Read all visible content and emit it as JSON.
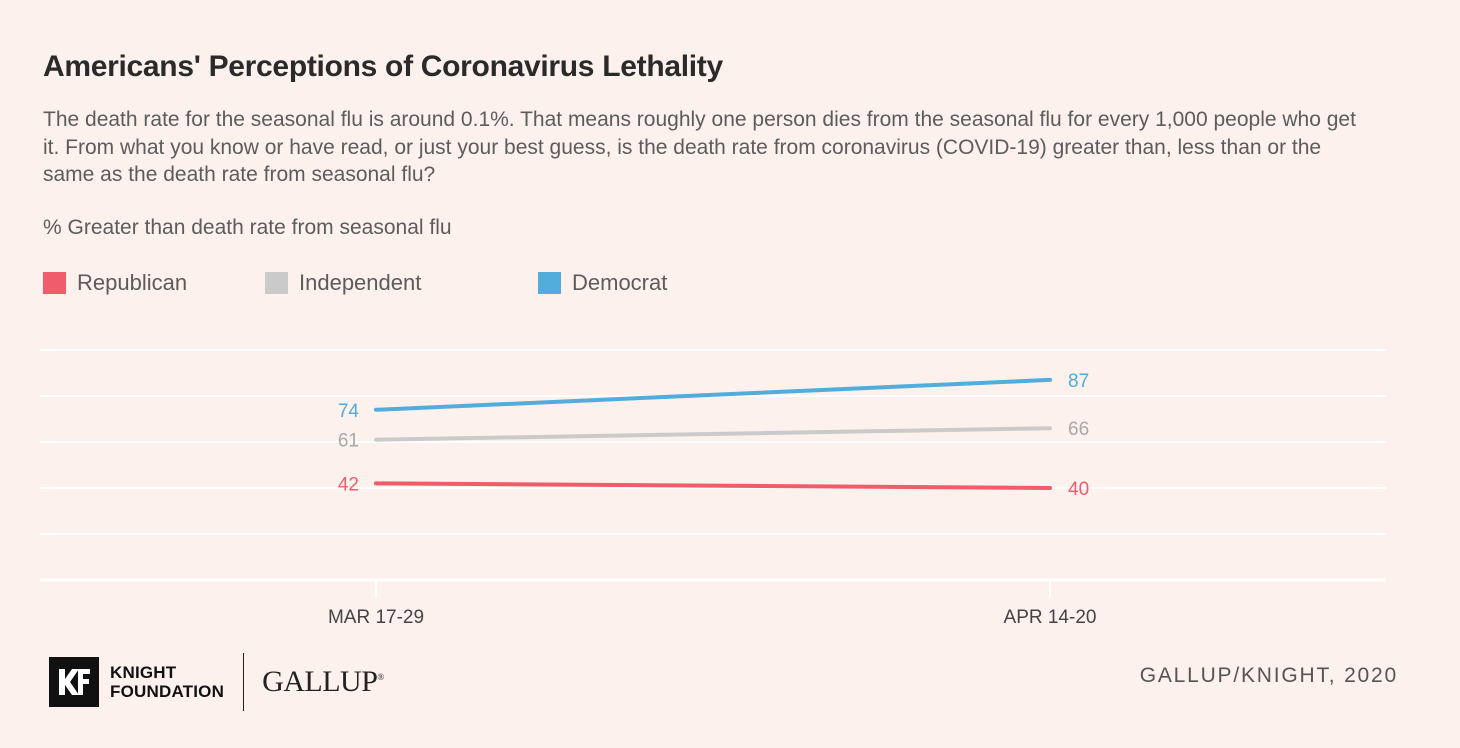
{
  "title": "Americans' Perceptions of Coronavirus Lethality",
  "subtitle": "The death rate for the seasonal flu is around 0.1%. That means roughly one person dies from the seasonal flu for every 1,000 people who get it. From what you know or have read, or just your best guess, is the death rate from coronavirus (COVID-19) greater than, less than or the same as the death rate from seasonal flu?",
  "measure_label": "% Greater than death rate from seasonal flu",
  "footer": {
    "logo_kf_line1": "KNIGHT",
    "logo_kf_line2": "FOUNDATION",
    "logo_gallup": "GALLUP",
    "credit": "GALLUP/KNIGHT, 2020"
  },
  "chart_data": {
    "type": "line",
    "x": [
      "MAR 17-29",
      "APR 14-20"
    ],
    "ylim": [
      0,
      100
    ],
    "grid": true,
    "legend_position": "top-left",
    "series": [
      {
        "name": "Republican",
        "values": [
          42,
          40
        ],
        "color": "#ef5c6a"
      },
      {
        "name": "Independent",
        "values": [
          61,
          66
        ],
        "color": "#cacaca"
      },
      {
        "name": "Democrat",
        "values": [
          74,
          87
        ],
        "color": "#52acdc"
      }
    ]
  }
}
